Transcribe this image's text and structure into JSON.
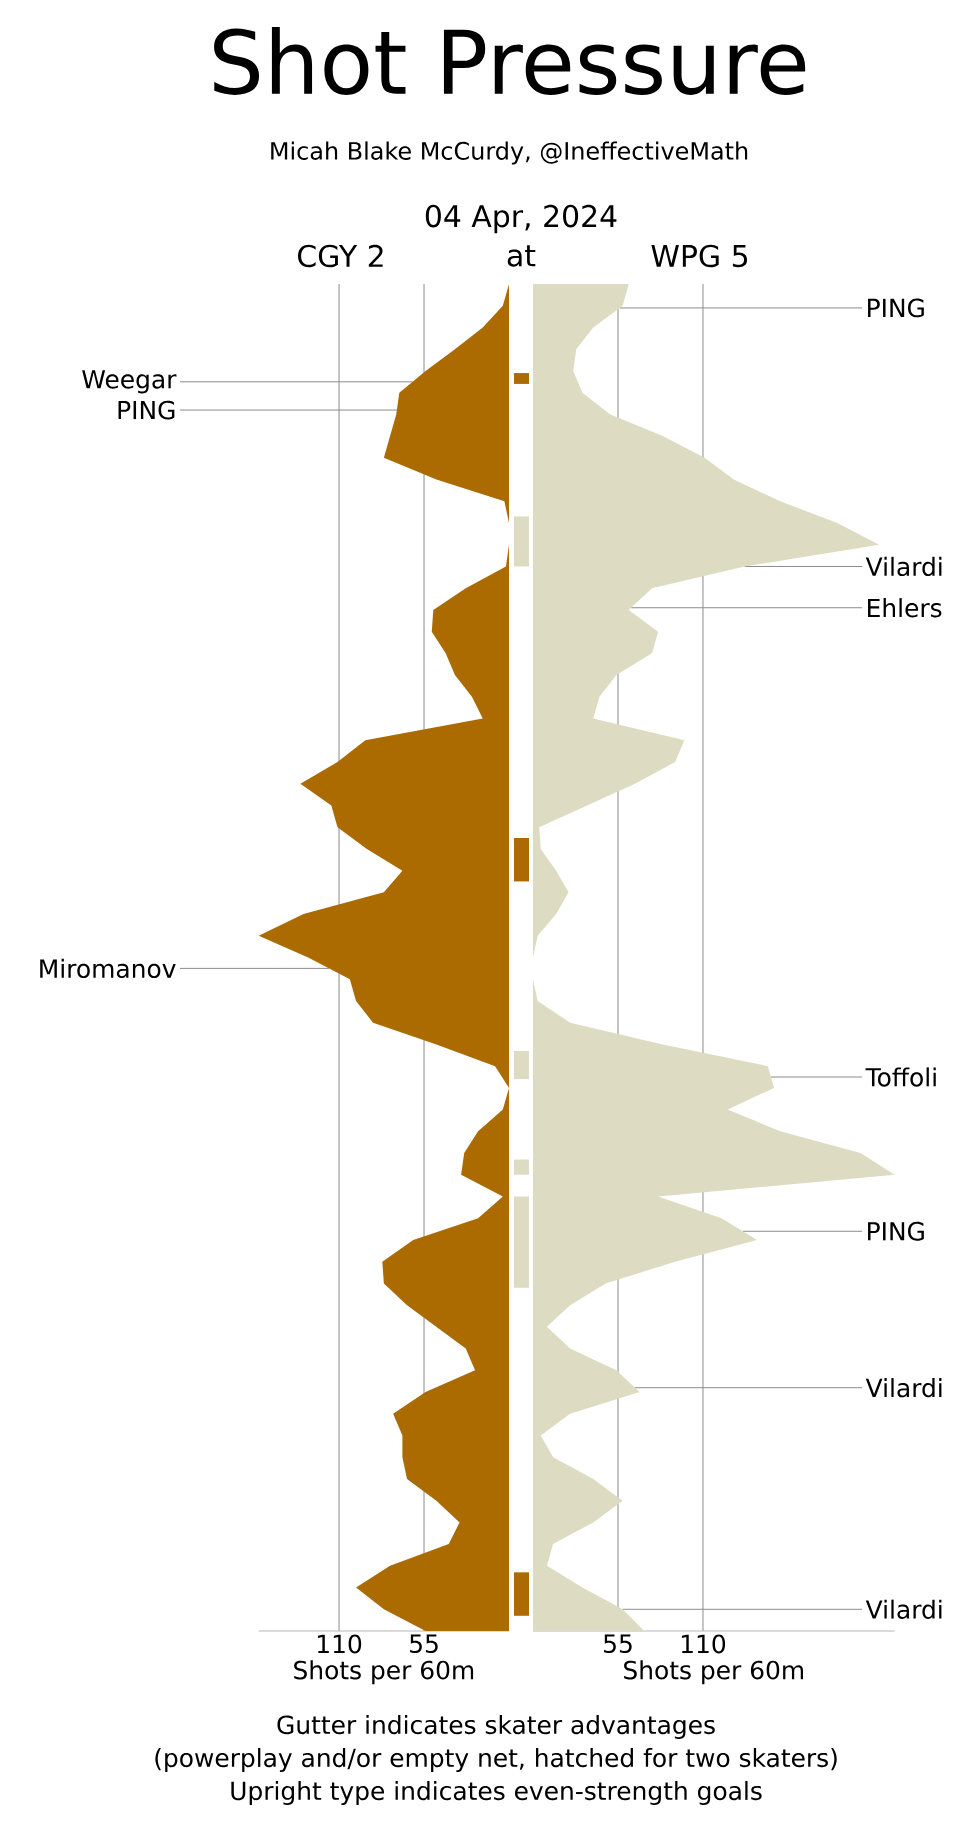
{
  "chart_data": [
    {
      "type": "area",
      "orientation": "horizontal",
      "title": "Shot Pressure",
      "subtitle": "Micah Blake McCurdy, @IneffectiveMath",
      "xlabel": "Shots per 60m",
      "xlim": [
        162,
        0
      ],
      "xticks": [
        110,
        55
      ],
      "tick_labels": "x",
      "grid": "x",
      "categories": [
        null,
        null,
        null,
        null,
        null,
        null,
        null,
        null,
        null,
        null,
        null,
        null,
        null,
        null,
        null,
        null,
        null,
        null,
        null,
        null,
        null,
        null,
        null,
        null,
        null,
        null,
        null,
        null,
        null,
        null,
        null,
        null,
        null,
        null,
        null,
        null,
        null,
        null,
        null,
        null,
        null,
        null,
        null,
        null,
        null,
        null,
        null,
        null,
        null,
        null,
        null,
        null,
        null,
        null,
        null,
        null,
        null,
        null,
        null,
        null,
        null,
        null,
        null
      ],
      "series": [
        {
          "color": "#ab6b00",
          "values": [
            0,
            4,
            17,
            35,
            54,
            71,
            73,
            77,
            81,
            47,
            3,
            0,
            0,
            2,
            28,
            49,
            50,
            41,
            35,
            24,
            17,
            93,
            111,
            135,
            115,
            111,
            92,
            69,
            81,
            133,
            162,
            130,
            103,
            99,
            88,
            47,
            9,
            0,
            4,
            20,
            29,
            31,
            4,
            20,
            62,
            82,
            81,
            66,
            47,
            28,
            22,
            54,
            75,
            69,
            69,
            66,
            47,
            32,
            39,
            77,
            99,
            81,
            54
          ]
        }
      ],
      "annotations": [
        "04 Apr, 2024",
        "CGY 2",
        "at",
        "Weegar",
        "PING",
        "Miromanov",
        "Gutter indicates skater advantages",
        "(powerplay and/or empty net, hatched for two skaters)",
        "Upright type indicates even-strength goals"
      ]
    },
    {
      "type": "area",
      "orientation": "horizontal",
      "xlabel": "Shots per 60m",
      "xlim": [
        0,
        234
      ],
      "xticks": [
        55,
        110
      ],
      "tick_labels": "x",
      "grid": "x",
      "categories": [
        null,
        null,
        null,
        null,
        null,
        null,
        null,
        null,
        null,
        null,
        null,
        null,
        null,
        null,
        null,
        null,
        null,
        null,
        null,
        null,
        null,
        null,
        null,
        null,
        null,
        null,
        null,
        null,
        null,
        null,
        null,
        null,
        null,
        null,
        null,
        null,
        null,
        null,
        null,
        null,
        null,
        null,
        null,
        null,
        null,
        null,
        null,
        null,
        null,
        null,
        null,
        null,
        null,
        null,
        null,
        null,
        null,
        null,
        null,
        null,
        null,
        null,
        null
      ],
      "series": [
        {
          "color": "#dddcc3",
          "values": [
            62,
            58,
            39,
            28,
            26,
            32,
            50,
            84,
            111,
            130,
            160,
            197,
            224,
            137,
            77,
            62,
            81,
            77,
            54,
            43,
            39,
            98,
            92,
            66,
            35,
            4,
            5,
            15,
            23,
            15,
            3,
            0,
            0,
            3,
            24,
            84,
            152,
            156,
            126,
            160,
            212,
            234,
            81,
            122,
            145,
            92,
            47,
            24,
            9,
            24,
            54,
            69,
            24,
            5,
            13,
            39,
            58,
            39,
            13,
            9,
            32,
            58,
            72
          ]
        }
      ],
      "annotations": [
        "WPG 5",
        "PING",
        "Vilardi",
        "Ehlers",
        "Toffoli",
        "PING",
        "Vilardi",
        "Vilardi"
      ]
    }
  ]
}
